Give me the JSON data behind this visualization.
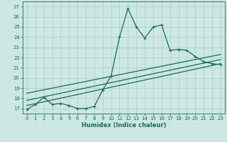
{
  "xlabel": "Humidex (Indice chaleur)",
  "ylabel": "",
  "xlim": [
    -0.5,
    23.5
  ],
  "ylim": [
    16.5,
    27.5
  ],
  "xticks": [
    0,
    1,
    2,
    3,
    4,
    5,
    6,
    7,
    8,
    9,
    10,
    11,
    12,
    13,
    14,
    15,
    16,
    17,
    18,
    19,
    20,
    21,
    22,
    23
  ],
  "yticks": [
    17,
    18,
    19,
    20,
    21,
    22,
    23,
    24,
    25,
    26,
    27
  ],
  "background_color": "#cce8e0",
  "grid_color": "#aacfc8",
  "line_color": "#1a6b5a",
  "series": [
    {
      "x": [
        0,
        1,
        2,
        3,
        4,
        5,
        6,
        7,
        8,
        9,
        10,
        11,
        12,
        13,
        14,
        15,
        16,
        17,
        18,
        19,
        20,
        21,
        22,
        23
      ],
      "y": [
        16.9,
        17.4,
        18.1,
        17.4,
        17.5,
        17.3,
        17.0,
        17.0,
        17.2,
        18.8,
        20.2,
        24.0,
        26.8,
        25.0,
        23.9,
        25.0,
        25.2,
        22.7,
        22.8,
        22.7,
        22.1,
        21.6,
        21.4,
        21.3
      ],
      "marker": "+"
    },
    {
      "x": [
        0,
        23
      ],
      "y": [
        17.8,
        21.8
      ]
    },
    {
      "x": [
        0,
        23
      ],
      "y": [
        18.5,
        22.3
      ]
    },
    {
      "x": [
        0,
        23
      ],
      "y": [
        17.3,
        21.4
      ]
    }
  ]
}
